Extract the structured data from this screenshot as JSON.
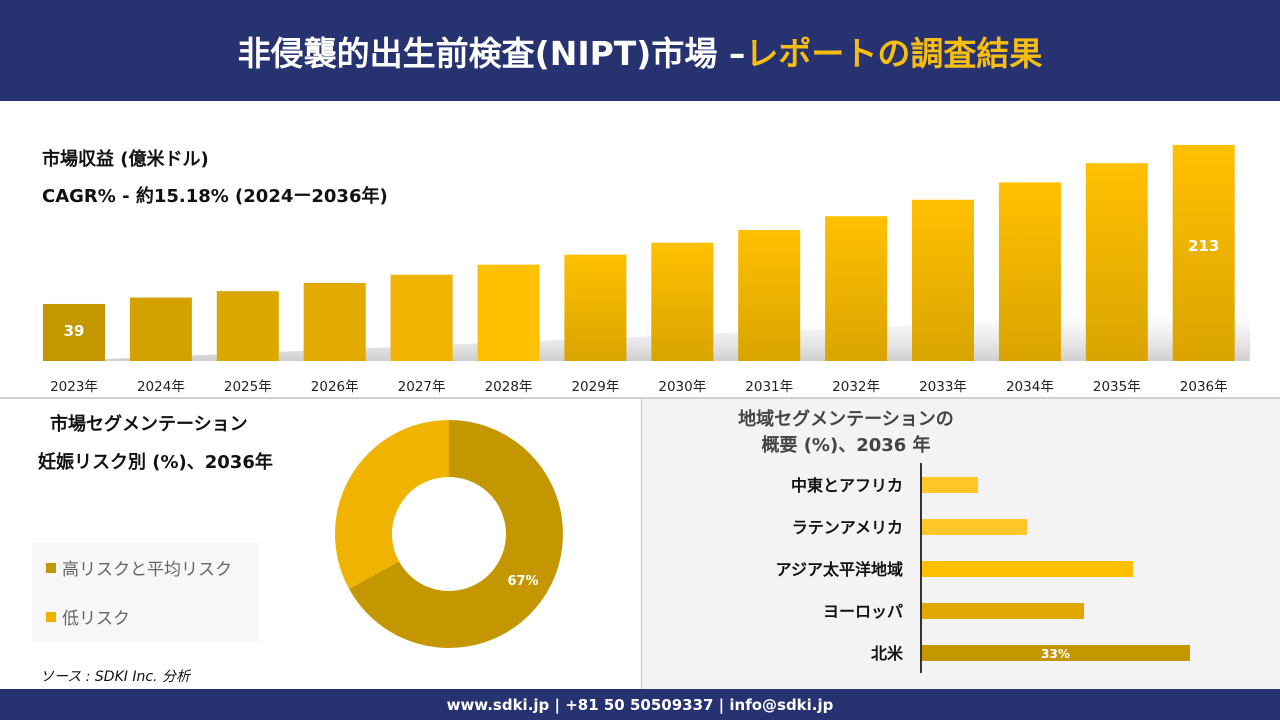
{
  "header": {
    "title_main": "非侵襲的出生前検査(NIPT)市場 –",
    "title_highlight": "レポートの調査結果"
  },
  "footer": {
    "text": "www.sdki.jp | +81 50 50509337 | info@sdki.jp"
  },
  "source": "ソース : SDKI Inc. 分析",
  "colors": {
    "navy": "#263370",
    "gold_dark": "#c49600",
    "gold": "#f0b400",
    "yellow": "#ffc000"
  },
  "chart_data": [
    {
      "type": "bar",
      "title": "市場収益 (億米ドル)",
      "subtitle": "CAGR% - 約15.18% (2024ー2036年)",
      "categories": [
        "2023年",
        "2024年",
        "2025年",
        "2026年",
        "2027年",
        "2028年",
        "2029年",
        "2030年",
        "2031年",
        "2032年",
        "2033年",
        "2034年",
        "2035年",
        "2036年"
      ],
      "values": [
        39,
        46,
        53,
        62,
        71,
        82,
        93,
        106,
        120,
        135,
        153,
        172,
        193,
        213
      ],
      "data_labels": {
        "0": "39",
        "13": "213"
      },
      "grid": false
    },
    {
      "type": "pie",
      "donut": true,
      "title": "市場セグメンテーション",
      "subtitle": "妊娠リスク別 (%)、2036年",
      "labels": [
        "高リスクと平均リスク",
        "低リスク"
      ],
      "values": [
        67,
        33
      ],
      "data_labels": [
        "67%",
        ""
      ],
      "colors": [
        "#c49600",
        "#f0b400"
      ],
      "legend": "left"
    },
    {
      "type": "bar",
      "orientation": "horizontal",
      "title": "地域セグメンテーションの",
      "subtitle": "概要 (%)、2036 年",
      "categories": [
        "中東とアフリカ",
        "ラテンアメリカ",
        "アジア太平洋地域",
        "ヨーロッパ",
        "北米"
      ],
      "values": [
        7,
        13,
        26,
        20,
        33
      ],
      "data_labels": [
        "",
        "",
        "",
        "",
        "33%"
      ],
      "colors": [
        "#ffc62a",
        "#ffc62a",
        "#ffc000",
        "#e0a800",
        "#c49600"
      ]
    }
  ]
}
